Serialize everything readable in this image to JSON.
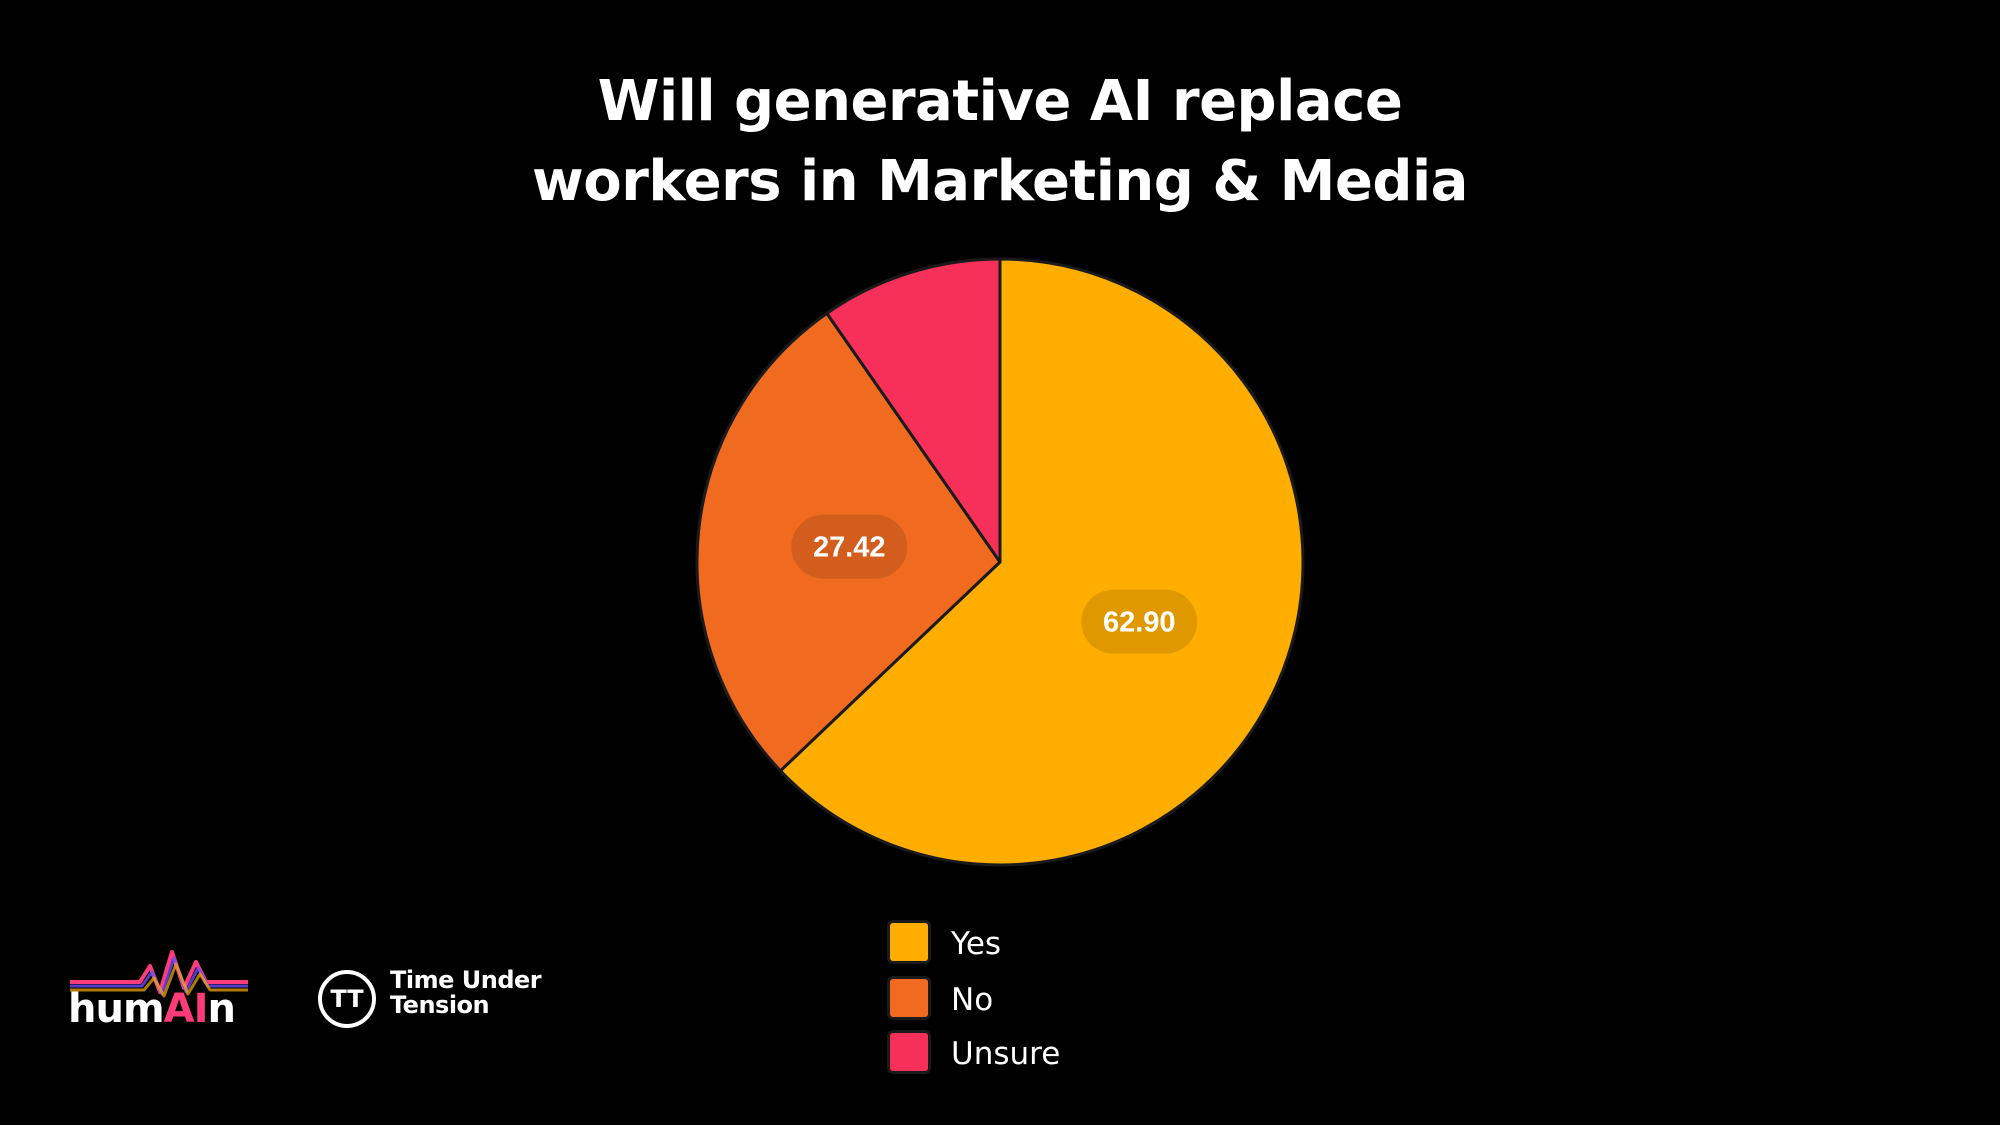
{
  "title": {
    "line1": "Will generative AI replace",
    "line2": "workers in Marketing & Media"
  },
  "chart_data": {
    "type": "pie",
    "title": "Will generative AI replace workers in Marketing & Media",
    "categories": [
      "Yes",
      "No",
      "Unsure"
    ],
    "values": [
      62.9,
      27.42,
      9.68
    ],
    "value_labels": [
      "62.90",
      "27.42",
      ""
    ],
    "colors": [
      "#FFAE00",
      "#F06A20",
      "#F7305A"
    ],
    "start": "12 o'clock",
    "direction": "clockwise",
    "legend_placement": "bottom"
  },
  "legend": {
    "items": [
      {
        "label": "Yes",
        "color": "#FFAE00"
      },
      {
        "label": "No",
        "color": "#F06A20"
      },
      {
        "label": "Unsure",
        "color": "#F7305A"
      }
    ]
  },
  "logos": {
    "humain": {
      "text_pre": "hum",
      "text_ai": "AI",
      "text_post": "n"
    },
    "time_under_tension": {
      "line1": "Time Under",
      "line2": "Tension",
      "mark": "TT"
    }
  }
}
